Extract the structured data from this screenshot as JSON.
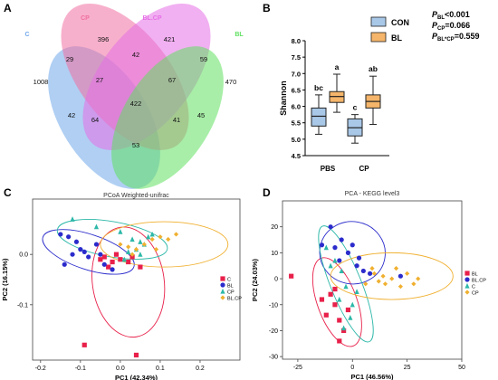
{
  "chart_data": [
    {
      "panel": "A",
      "type": "venn",
      "sets": [
        {
          "name": "C",
          "color": "#6FA8EA"
        },
        {
          "name": "CP",
          "color": "#F06FA0"
        },
        {
          "name": "BL.CP",
          "color": "#E66FE6"
        },
        {
          "name": "BL",
          "color": "#60E060"
        }
      ],
      "region_values": {
        "C": "1008",
        "CP": "396",
        "BL.CP": "421",
        "BL": "470",
        "C_CP": "29",
        "CP_BLCP": "42",
        "BLCP_BL": "59",
        "C_CP_BLCP": "27",
        "CP_BLCP_BL": "67",
        "all": "422",
        "C_BLCP": "42",
        "CP_BL": "45",
        "C_CP_BL": "64",
        "C_BLCP_BL": "41",
        "C_BL": "53"
      }
    },
    {
      "panel": "B",
      "type": "box",
      "ylabel": "Shannon",
      "ylim": [
        4.5,
        8.0
      ],
      "yticks": [
        "4.5",
        "5.0",
        "5.5",
        "6.0",
        "6.5",
        "7.0",
        "7.5",
        "8.0"
      ],
      "categories": [
        "PBS",
        "CP"
      ],
      "series": [
        {
          "name": "CON",
          "color": "#A9C8E8",
          "boxes": [
            {
              "min": 5.15,
              "q1": 5.4,
              "median": 5.7,
              "q3": 5.95,
              "max": 6.35,
              "letter": "bc"
            },
            {
              "min": 4.88,
              "q1": 5.1,
              "median": 5.35,
              "q3": 5.62,
              "max": 5.75,
              "letter": "c"
            }
          ]
        },
        {
          "name": "BL",
          "color": "#F5B56A",
          "boxes": [
            {
              "min": 5.82,
              "q1": 6.12,
              "median": 6.3,
              "q3": 6.45,
              "max": 6.98,
              "letter": "a"
            },
            {
              "min": 5.45,
              "q1": 5.95,
              "median": 6.15,
              "q3": 6.35,
              "max": 6.92,
              "letter": "ab"
            }
          ]
        }
      ],
      "pvalues": [
        {
          "sub": "BL",
          "text": "<0.001"
        },
        {
          "sub": "CP",
          "text": "=0.066"
        },
        {
          "sub": "BL*CP",
          "text": "=0.559"
        }
      ]
    },
    {
      "panel": "C",
      "type": "scatter",
      "title": "PCoA Weighted-unifrac",
      "xlabel": "PC1 (42.34%)",
      "ylabel": "PC2 (16.15%)",
      "xlim": [
        -0.22,
        0.3
      ],
      "ylim": [
        -0.21,
        0.11
      ],
      "xticks": [
        -0.2,
        -0.1,
        0.0,
        0.1,
        0.2
      ],
      "xtick_labels": [
        "-0.2",
        "-0.1",
        "0.0",
        "0.1",
        "0.2"
      ],
      "yticks": [
        0.0,
        -0.1
      ],
      "ytick_labels": [
        "0.0",
        "-0.1"
      ],
      "legend_position": "right",
      "series": [
        {
          "name": "C",
          "color": "#E8204A",
          "marker": "square",
          "points": [
            [
              -0.05,
              -0.01
            ],
            [
              -0.04,
              -0.005
            ],
            [
              -0.02,
              -0.015
            ],
            [
              -0.01,
              0.0
            ],
            [
              0.0,
              -0.01
            ],
            [
              0.02,
              -0.015
            ],
            [
              0.03,
              -0.005
            ],
            [
              0.05,
              -0.025
            ],
            [
              -0.03,
              -0.025
            ],
            [
              -0.09,
              -0.18
            ],
            [
              0.04,
              -0.2
            ]
          ],
          "ellipse": {
            "cx": 0.02,
            "cy": -0.055,
            "rx": 0.09,
            "ry": 0.11,
            "angle": 8
          }
        },
        {
          "name": "BL",
          "color": "#2B2BCC",
          "marker": "circle",
          "points": [
            [
              -0.15,
              0.04
            ],
            [
              -0.13,
              0.035
            ],
            [
              -0.11,
              0.025
            ],
            [
              -0.1,
              0.01
            ],
            [
              -0.09,
              0.005
            ],
            [
              -0.08,
              -0.005
            ],
            [
              -0.05,
              0.0
            ],
            [
              -0.04,
              -0.02
            ],
            [
              -0.06,
              0.02
            ],
            [
              -0.12,
              0.0
            ],
            [
              -0.14,
              -0.02
            ],
            [
              -0.02,
              -0.03
            ]
          ],
          "ellipse": {
            "cx": -0.08,
            "cy": 0.005,
            "rx": 0.12,
            "ry": 0.035,
            "angle": -18
          }
        },
        {
          "name": "CP",
          "color": "#2DB8A8",
          "marker": "triangle",
          "points": [
            [
              -0.12,
              0.07
            ],
            [
              -0.06,
              0.055
            ],
            [
              0.0,
              0.045
            ],
            [
              0.03,
              0.03
            ],
            [
              0.05,
              0.025
            ],
            [
              0.06,
              0.02
            ],
            [
              0.04,
              0.01
            ],
            [
              0.02,
              0.005
            ],
            [
              0.07,
              0.035
            ],
            [
              0.08,
              0.04
            ],
            [
              0.01,
              -0.01
            ],
            [
              0.05,
              0.0
            ]
          ],
          "ellipse": {
            "cx": -0.02,
            "cy": 0.03,
            "rx": 0.14,
            "ry": 0.035,
            "angle": -10
          }
        },
        {
          "name": "BL.CP",
          "color": "#F0B030",
          "marker": "diamond",
          "points": [
            [
              0.0,
              0.02
            ],
            [
              0.02,
              0.015
            ],
            [
              0.04,
              0.01
            ],
            [
              0.06,
              0.02
            ],
            [
              0.08,
              0.03
            ],
            [
              0.1,
              0.035
            ],
            [
              0.12,
              0.03
            ],
            [
              0.14,
              0.04
            ],
            [
              0.03,
              0.0
            ],
            [
              0.09,
              0.01
            ]
          ],
          "ellipse": {
            "cx": 0.11,
            "cy": 0.02,
            "rx": 0.16,
            "ry": 0.045,
            "angle": 0
          }
        }
      ]
    },
    {
      "panel": "D",
      "type": "scatter",
      "title": "PCA - KEGG level3",
      "xlabel": "PC1 (46.56%)",
      "ylabel": "PC2 (24.03%)",
      "xlim": [
        -32,
        50
      ],
      "ylim": [
        -31,
        30
      ],
      "xticks": [
        -25,
        0,
        25,
        50
      ],
      "xtick_labels": [
        "-25",
        "0",
        "25",
        "50"
      ],
      "yticks": [
        20,
        10,
        0,
        -10,
        -20,
        -30
      ],
      "ytick_labels": [
        "20",
        "10",
        "0",
        "-10",
        "-20",
        "-30"
      ],
      "legend_position": "right",
      "series": [
        {
          "name": "BL",
          "color": "#E8204A",
          "marker": "square",
          "points": [
            [
              -28,
              1
            ],
            [
              -10,
              -6
            ],
            [
              -8,
              -10
            ],
            [
              -12,
              -14
            ],
            [
              -6,
              -16
            ],
            [
              -4,
              -20
            ],
            [
              -8,
              -4
            ],
            [
              -14,
              -8
            ],
            [
              -2,
              -12
            ],
            [
              -6,
              -24
            ]
          ],
          "ellipse": {
            "cx": -7,
            "cy": -9,
            "rx": 9,
            "ry": 18,
            "angle": 20
          }
        },
        {
          "name": "BL.CP",
          "color": "#2B2BCC",
          "marker": "circle",
          "points": [
            [
              -10,
              20
            ],
            [
              -5,
              15
            ],
            [
              0,
              13
            ],
            [
              -2,
              10
            ],
            [
              2,
              5
            ],
            [
              5,
              3
            ],
            [
              -8,
              12
            ],
            [
              8,
              2
            ],
            [
              -6,
              7
            ],
            [
              3,
              8
            ],
            [
              22,
              1
            ],
            [
              -14,
              13
            ]
          ],
          "ellipse": {
            "cx": 0,
            "cy": 10,
            "rx": 15,
            "ry": 12,
            "angle": -10
          }
        },
        {
          "name": "C",
          "color": "#2DB8A8",
          "marker": "triangle",
          "points": [
            [
              -12,
              12
            ],
            [
              -8,
              7
            ],
            [
              -5,
              3
            ],
            [
              -3,
              -3
            ],
            [
              -6,
              -8
            ],
            [
              -1,
              -15
            ],
            [
              -4,
              -19
            ],
            [
              2,
              -5
            ],
            [
              -10,
              5
            ],
            [
              0,
              -10
            ]
          ],
          "ellipse": {
            "cx": -3,
            "cy": -2,
            "rx": 7,
            "ry": 24,
            "angle": 22
          }
        },
        {
          "name": "CP",
          "color": "#F0B030",
          "marker": "diamond",
          "points": [
            [
              6,
              -2
            ],
            [
              10,
              2
            ],
            [
              12,
              -1
            ],
            [
              15,
              -2
            ],
            [
              18,
              0
            ],
            [
              20,
              4
            ],
            [
              25,
              2
            ],
            [
              28,
              -2
            ],
            [
              9,
              4
            ],
            [
              14,
              1
            ],
            [
              22,
              -3
            ],
            [
              30,
              0
            ]
          ],
          "ellipse": {
            "cx": 18,
            "cy": 1,
            "rx": 28,
            "ry": 9,
            "angle": 0
          }
        }
      ]
    }
  ],
  "panel_labels": [
    "A",
    "B",
    "C",
    "D"
  ]
}
